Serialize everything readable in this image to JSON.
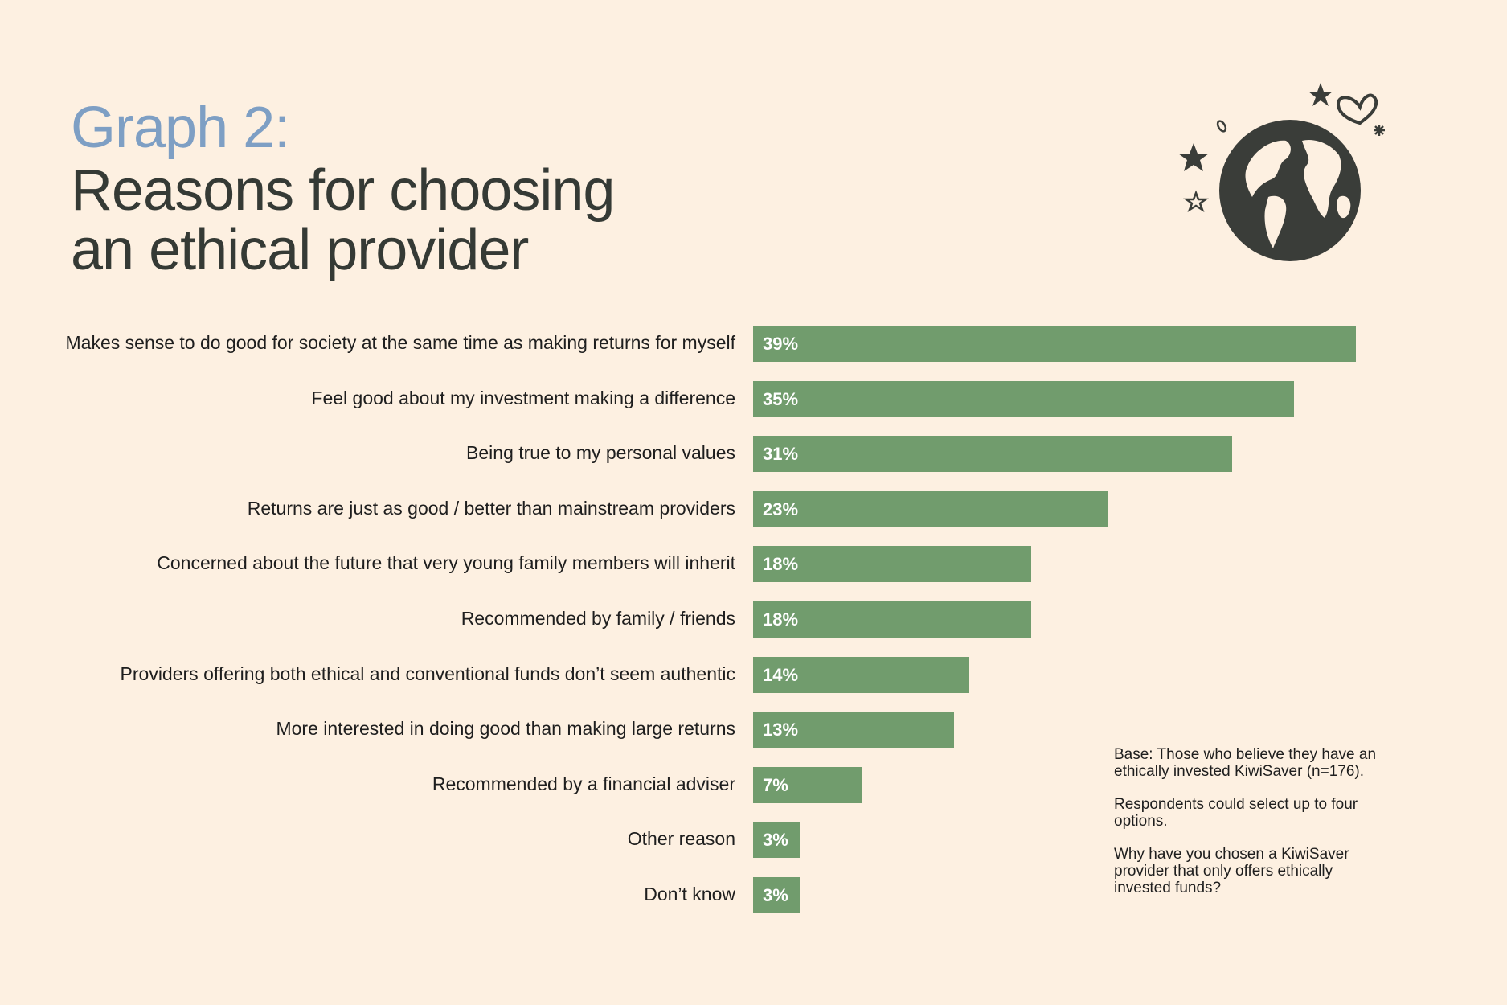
{
  "header": {
    "kicker": "Graph 2:",
    "title_line1": "Reasons for choosing",
    "title_line2": "an ethical provider"
  },
  "illustration": {
    "icon": "globe-icon",
    "decorations": [
      "star-icon",
      "heart-icon",
      "sparkle-icon",
      "leaf-icon"
    ]
  },
  "colors": {
    "background": "#fdf0e1",
    "bar": "#719c6d",
    "kicker": "#7e9fc4",
    "title": "#353a35"
  },
  "chart_data": {
    "type": "bar",
    "orientation": "horizontal",
    "categories": [
      "Makes sense to do good for society at the same time as making returns for myself",
      "Feel good about my investment making a difference",
      "Being true to my personal values",
      "Returns are just as good / better than mainstream providers",
      "Concerned about the future that very young family members will inherit",
      "Recommended by family / friends",
      "Providers offering both ethical and conventional funds don’t seem authentic",
      "More interested in doing good than making large returns",
      "Recommended by a financial adviser",
      "Other reason",
      "Don’t know"
    ],
    "values": [
      39,
      35,
      31,
      23,
      18,
      18,
      14,
      13,
      7,
      3,
      3
    ],
    "value_labels": [
      "39%",
      "35%",
      "31%",
      "23%",
      "18%",
      "18%",
      "14%",
      "13%",
      "7%",
      "3%",
      "3%"
    ],
    "unit": "%",
    "xlim": [
      0,
      39
    ],
    "grid": false,
    "legend": "none"
  },
  "notes": {
    "base": "Base: Those who believe they have an ethically invested KiwiSaver (n=176).",
    "respondents": "Respondents could select up to four options.",
    "question": "Why have you chosen a KiwiSaver provider that only offers ethically invested funds?"
  }
}
